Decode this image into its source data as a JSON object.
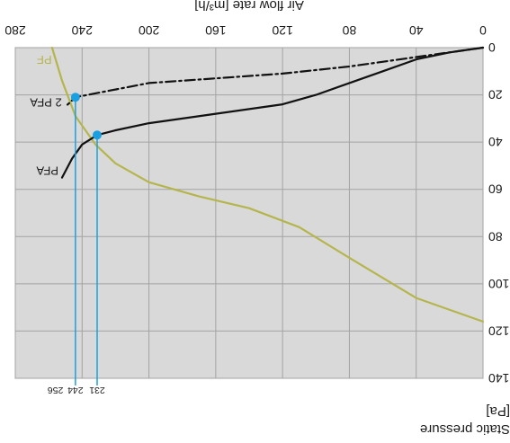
{
  "chart_data": {
    "type": "line",
    "title": "",
    "xlabel": "Air flow rate [m³/h]",
    "ylabel_line1": "Static pressure",
    "ylabel_line2": "[Pa]",
    "xlim": [
      0,
      280
    ],
    "ylim": [
      0,
      140
    ],
    "x_ticks": [
      0,
      40,
      80,
      120,
      160,
      200,
      240,
      280
    ],
    "y_ticks": [
      0,
      20,
      40,
      60,
      80,
      100,
      120,
      140
    ],
    "y_ticks_inverted": true,
    "grid": true,
    "series": [
      {
        "name": "PF",
        "label_x": 256,
        "label_y": 5,
        "points": [
          [
            0,
            116
          ],
          [
            40,
            106
          ],
          [
            80,
            89
          ],
          [
            110,
            76
          ],
          [
            140,
            68
          ],
          [
            170,
            63
          ],
          [
            200,
            57
          ],
          [
            220,
            49
          ],
          [
            232,
            41
          ],
          [
            244,
            29
          ],
          [
            252,
            14
          ],
          [
            258,
            0
          ]
        ]
      },
      {
        "name": "PFA",
        "label_x": 252,
        "label_y": 52,
        "points": [
          [
            0,
            0
          ],
          [
            20,
            2
          ],
          [
            40,
            5
          ],
          [
            60,
            10
          ],
          [
            80,
            15
          ],
          [
            100,
            20
          ],
          [
            120,
            24
          ],
          [
            160,
            28
          ],
          [
            200,
            32
          ],
          [
            220,
            35
          ],
          [
            231,
            37
          ],
          [
            240,
            41
          ],
          [
            246,
            47
          ],
          [
            252,
            55
          ]
        ]
      },
      {
        "name": "2 PFA",
        "label_x": 250,
        "label_y": 23,
        "points": [
          [
            0,
            0
          ],
          [
            40,
            4
          ],
          [
            80,
            8
          ],
          [
            120,
            11
          ],
          [
            160,
            13
          ],
          [
            200,
            15
          ],
          [
            244,
            21
          ],
          [
            250,
            25
          ]
        ]
      }
    ],
    "markers": [
      {
        "x": 231,
        "y": 37
      },
      {
        "x": 244,
        "y": 21
      }
    ],
    "marker_labels": [
      "231",
      "244",
      "256"
    ],
    "marker_label_values": [
      231,
      244,
      256
    ],
    "colors": {
      "pf": "#b5b54e",
      "pfa": "#111111",
      "two_pfa": "#111111",
      "marker": "#1aa0e0",
      "plot_bg": "#d9d9d9",
      "grid": "#a3a3a3"
    }
  }
}
